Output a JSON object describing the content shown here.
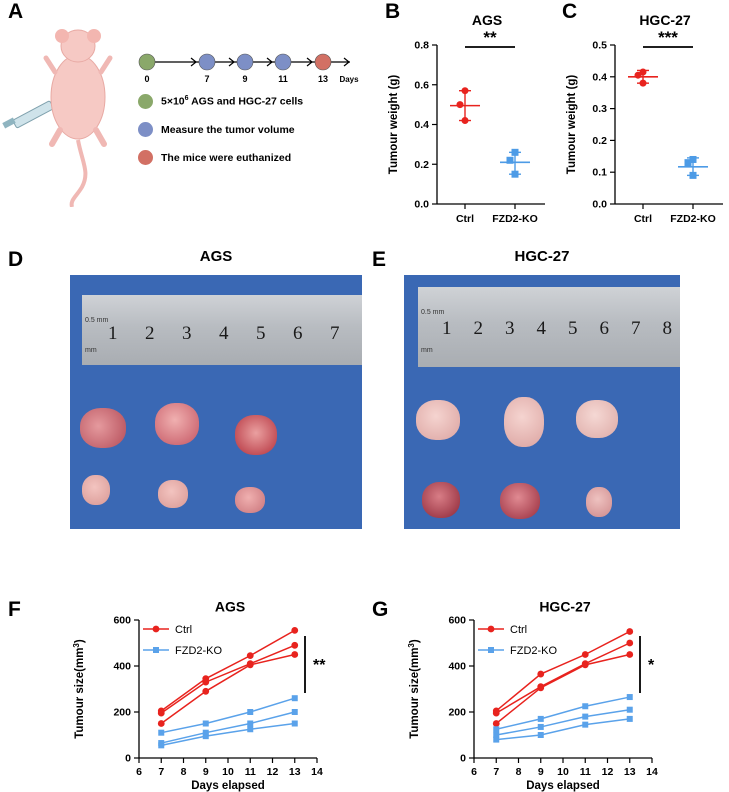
{
  "panels": {
    "a": "A",
    "b": "B",
    "c": "C",
    "d": "D",
    "e": "E",
    "f": "F",
    "g": "G"
  },
  "timeline": {
    "days": [
      "0",
      "7",
      "9",
      "11",
      "13"
    ],
    "days_label": "Days",
    "colors": [
      "#8aa86a",
      "#7d8fc6",
      "#7d8fc6",
      "#7d8fc6",
      "#d27064"
    ],
    "legend": [
      {
        "text_before": "5×10",
        "sup": "6",
        "text_after": " AGS and HGC-27  cells",
        "color": "#8aa86a"
      },
      {
        "text_before": "Measure the tumor volume",
        "sup": "",
        "text_after": "",
        "color": "#7d8fc6"
      },
      {
        "text_before": "The mice were euthanized",
        "sup": "",
        "text_after": "",
        "color": "#d27064"
      }
    ]
  },
  "photos": {
    "d_title": "AGS",
    "e_title": "HGC-27",
    "ruler_numbers_d": [
      "1",
      "2",
      "3",
      "4",
      "5",
      "6",
      "7"
    ],
    "ruler_numbers_e": [
      "1",
      "2",
      "3",
      "4",
      "5",
      "6",
      "7",
      "8"
    ],
    "ruler_mm": [
      "0.5 mm",
      "mm"
    ]
  },
  "chart_data": [
    {
      "id": "B",
      "type": "scatter",
      "title": "AGS",
      "ylabel": "Tumour weight (g)",
      "categories": [
        "Ctrl",
        "FZD2-KO"
      ],
      "ylim": [
        0,
        0.8
      ],
      "yticks": [
        "0.0",
        "0.2",
        "0.4",
        "0.6",
        "0.8"
      ],
      "series": [
        {
          "name": "Ctrl",
          "color": "#e8231e",
          "marker": "circle",
          "points": [
            0.57,
            0.5,
            0.42
          ],
          "mean": 0.495,
          "err": [
            0.42,
            0.57
          ]
        },
        {
          "name": "FZD2-KO",
          "color": "#4d9be6",
          "marker": "square",
          "points": [
            0.26,
            0.22,
            0.15
          ],
          "mean": 0.21,
          "err": [
            0.15,
            0.26
          ]
        }
      ],
      "significance": "**"
    },
    {
      "id": "C",
      "type": "scatter",
      "title": "HGC-27",
      "ylabel": "Tumour weight (g)",
      "categories": [
        "Ctrl",
        "FZD2-KO"
      ],
      "ylim": [
        0,
        0.5
      ],
      "yticks": [
        "0.0",
        "0.1",
        "0.2",
        "0.3",
        "0.4",
        "0.5"
      ],
      "series": [
        {
          "name": "Ctrl",
          "color": "#e8231e",
          "marker": "circle",
          "points": [
            0.415,
            0.405,
            0.38
          ],
          "mean": 0.4,
          "err": [
            0.38,
            0.42
          ]
        },
        {
          "name": "FZD2-KO",
          "color": "#4d9be6",
          "marker": "square",
          "points": [
            0.14,
            0.13,
            0.09
          ],
          "mean": 0.117,
          "err": [
            0.09,
            0.145
          ]
        }
      ],
      "significance": "***"
    },
    {
      "id": "F",
      "type": "line",
      "title": "AGS",
      "xlabel": "Days elapsed",
      "ylabel": "Tumour size(mm3)",
      "x": [
        7,
        9,
        11,
        13
      ],
      "xlim": [
        6,
        14
      ],
      "ylim": [
        0,
        600
      ],
      "xticks": [
        "6",
        "7",
        "8",
        "9",
        "10",
        "11",
        "12",
        "13",
        "14"
      ],
      "yticks": [
        "0",
        "200",
        "400",
        "600"
      ],
      "series": [
        {
          "name": "Ctrl",
          "color": "#e8231e",
          "marker": "circle",
          "lines": [
            [
              205,
              345,
              445,
              555
            ],
            [
              195,
              330,
              410,
              490
            ],
            [
              150,
              290,
              405,
              450
            ]
          ]
        },
        {
          "name": "FZD2-KO",
          "color": "#5aa2ea",
          "marker": "square",
          "lines": [
            [
              110,
              150,
              200,
              260
            ],
            [
              65,
              110,
              150,
              200
            ],
            [
              55,
              95,
              125,
              150
            ]
          ]
        }
      ],
      "legend": [
        "Ctrl",
        "FZD2-KO"
      ],
      "significance": "**"
    },
    {
      "id": "G",
      "type": "line",
      "title": "HGC-27",
      "xlabel": "Days elapsed",
      "ylabel": "Tumour size(mm3)",
      "x": [
        7,
        9,
        11,
        13
      ],
      "xlim": [
        6,
        14
      ],
      "ylim": [
        0,
        600
      ],
      "xticks": [
        "6",
        "7",
        "8",
        "9",
        "10",
        "11",
        "12",
        "13",
        "14"
      ],
      "yticks": [
        "0",
        "200",
        "400",
        "600"
      ],
      "series": [
        {
          "name": "Ctrl",
          "color": "#e8231e",
          "marker": "circle",
          "lines": [
            [
              205,
              365,
              450,
              550
            ],
            [
              195,
              310,
              410,
              500
            ],
            [
              150,
              305,
              405,
              450
            ]
          ]
        },
        {
          "name": "FZD2-KO",
          "color": "#5aa2ea",
          "marker": "square",
          "lines": [
            [
              125,
              170,
              225,
              265
            ],
            [
              100,
              135,
              180,
              210
            ],
            [
              80,
              100,
              145,
              170
            ]
          ]
        }
      ],
      "legend": [
        "Ctrl",
        "FZD2-KO"
      ],
      "significance": "*"
    }
  ]
}
